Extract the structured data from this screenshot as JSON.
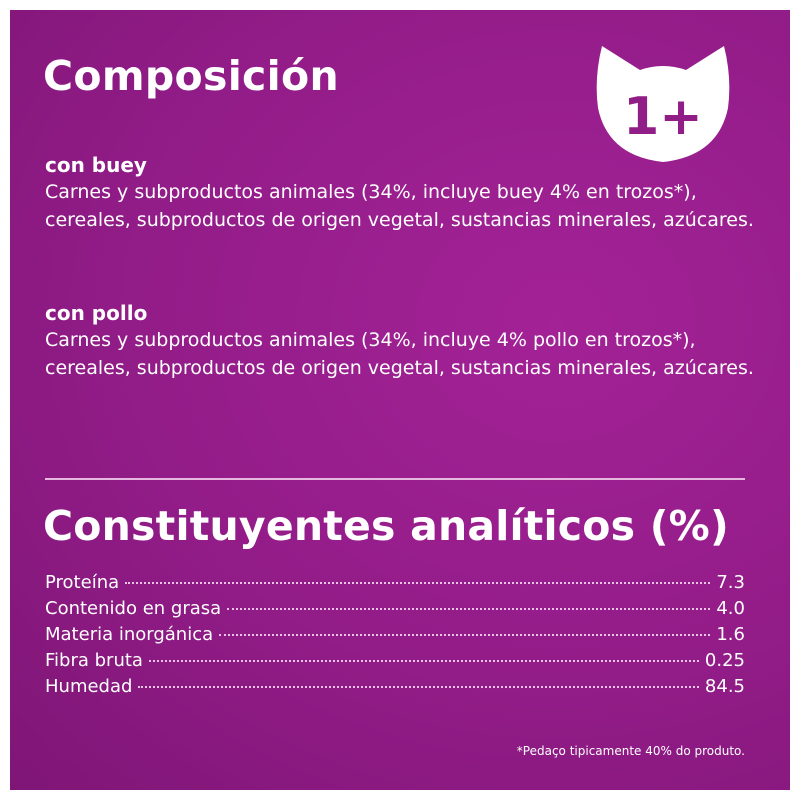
{
  "composition": {
    "title": "Composición",
    "beef": {
      "heading": "con buey",
      "text": "Carnes y subproductos animales (34%, incluye buey 4% en trozos*), cereales, subproductos de origen vegetal, sustancias minerales, azúcares."
    },
    "chicken": {
      "heading": "con pollo",
      "text": "Carnes y subproductos animales (34%, incluye 4% pollo en trozos*), cereales, subproductos de origen vegetal, sustancias minerales, azúcares."
    }
  },
  "badge": {
    "text": "1+",
    "icon": "cat-head-icon"
  },
  "analytical": {
    "title": "Constituyentes analíticos (%)",
    "rows": [
      {
        "label": "Proteína",
        "value": "7.3"
      },
      {
        "label": "Contenido en grasa",
        "value": "4.0"
      },
      {
        "label": "Materia inorgánica",
        "value": "1.6"
      },
      {
        "label": "Fibra bruta",
        "value": "0.25"
      },
      {
        "label": "Humedad",
        "value": "84.5"
      }
    ]
  },
  "footnote": "*Pedaço tipicamente 40% do produto.",
  "colors": {
    "background": "#921c88",
    "text": "#ffffff"
  }
}
